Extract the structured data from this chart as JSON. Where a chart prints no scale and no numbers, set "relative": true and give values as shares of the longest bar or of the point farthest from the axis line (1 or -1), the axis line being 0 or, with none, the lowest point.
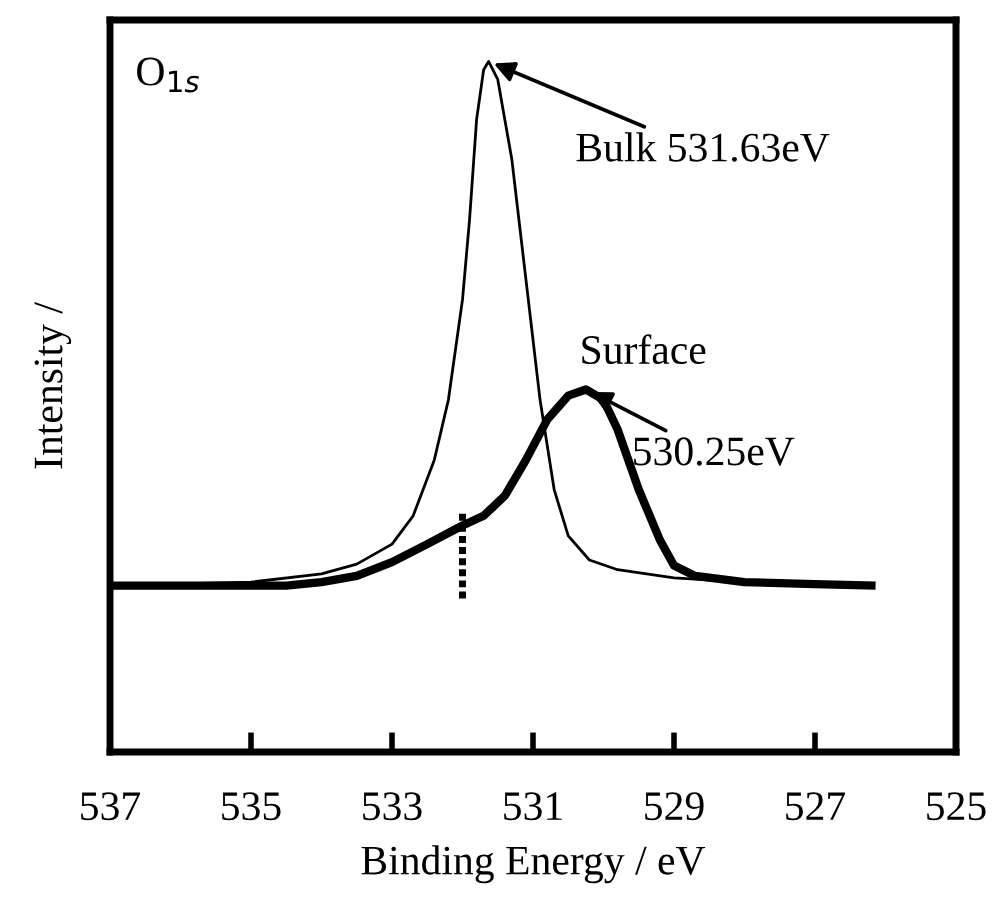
{
  "chart_data": {
    "type": "line",
    "relative": true,
    "xlabel": "Binding Energy / eV",
    "ylabel": "Intensity /",
    "xlim": [
      537,
      525
    ],
    "xticks": [
      537,
      535,
      533,
      531,
      529,
      527,
      525
    ],
    "grid": false,
    "legend": false,
    "marker": "none",
    "series": [
      {
        "color": "#000000",
        "line_style": "solid",
        "x": [
          537,
          535,
          534,
          533.5,
          533,
          532.7,
          532.4,
          532.2,
          532.0,
          531.9,
          531.8,
          531.7,
          531.63,
          531.5,
          531.3,
          531.1,
          530.9,
          530.7,
          530.5,
          530.2,
          529.8,
          529.0,
          528,
          527,
          526.2
        ],
        "values": [
          0.241,
          0.246,
          0.258,
          0.272,
          0.301,
          0.342,
          0.423,
          0.51,
          0.655,
          0.771,
          0.916,
          0.988,
          1.0,
          0.974,
          0.858,
          0.684,
          0.51,
          0.38,
          0.313,
          0.278,
          0.264,
          0.252,
          0.246,
          0.243,
          0.241
        ]
      },
      {
        "color": "#000000",
        "line_style": "solid",
        "x": [
          537,
          534.5,
          534,
          533.5,
          533,
          532.5,
          532.0,
          531.7,
          531.4,
          531.1,
          530.8,
          530.5,
          530.25,
          530.0,
          529.8,
          529.5,
          529.2,
          529.0,
          528.7,
          528,
          527,
          526.2
        ],
        "values": [
          0.241,
          0.241,
          0.246,
          0.255,
          0.275,
          0.301,
          0.328,
          0.342,
          0.371,
          0.423,
          0.481,
          0.516,
          0.525,
          0.51,
          0.467,
          0.38,
          0.307,
          0.27,
          0.255,
          0.246,
          0.243,
          0.241
        ]
      },
      {
        "color": "#000000",
        "line_style": "dotted",
        "x": [
          532.0,
          532.0
        ],
        "values": [
          0.345,
          0.22
        ]
      }
    ],
    "annotations": [
      "O$_{1s}$",
      "Surface",
      {
        "text": "Bulk 531.63eV",
        "x": 531.63,
        "y": 1.0
      },
      {
        "text": "530.25eV",
        "x": 530.25,
        "y": 0.525
      }
    ]
  }
}
